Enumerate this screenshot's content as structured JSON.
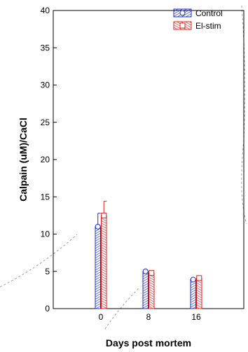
{
  "chart_data": {
    "type": "bar",
    "title": "",
    "xlabel": "Days post mortem",
    "ylabel": "Calpain (uM)/CaCl",
    "categories": [
      "0",
      "8",
      "16"
    ],
    "ylim": [
      0,
      40
    ],
    "yticks": [
      "0",
      "5",
      "10",
      "15",
      "20",
      "25",
      "30",
      "35",
      "40"
    ],
    "grid": false,
    "legend_position": "top-right",
    "series": [
      {
        "name": "Control",
        "values": [
          11.0,
          5.0,
          3.9
        ],
        "error": [
          1.8,
          0.0,
          0.0
        ],
        "color": "#1f2fd0",
        "marker": "circle"
      },
      {
        "name": "El-stim",
        "values": [
          12.5,
          4.8,
          4.1
        ],
        "error": [
          1.9,
          0.0,
          0.0
        ],
        "color": "#e02020",
        "marker": "square"
      }
    ]
  }
}
